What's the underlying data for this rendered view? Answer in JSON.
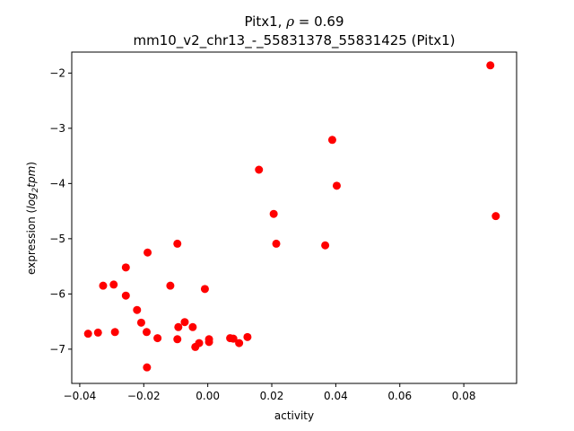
{
  "chart_data": {
    "type": "scatter",
    "title_prefix": "Pitx1, ",
    "title_rho": "ρ",
    "title_suffix": " = 0.69",
    "subtitle": "mm10_v2_chr13_-_55831378_55831425 (Pitx1)",
    "xlabel": "activity",
    "ylabel_prefix": "expression (",
    "ylabel_log": "log",
    "ylabel_sub": "2",
    "ylabel_tpm": "tpm",
    "ylabel_suffix": ")",
    "xlim": [
      -0.0425,
      0.0965
    ],
    "ylim": [
      -7.62,
      -1.62
    ],
    "xticks": [
      -0.04,
      -0.02,
      0.0,
      0.02,
      0.04,
      0.06,
      0.08
    ],
    "xtick_labels": [
      "−0.04",
      "−0.02",
      "0.00",
      "0.02",
      "0.04",
      "0.06",
      "0.08"
    ],
    "yticks": [
      -7,
      -6,
      -5,
      -4,
      -3,
      -2
    ],
    "ytick_labels": [
      "−7",
      "−6",
      "−5",
      "−4",
      "−3",
      "−2"
    ],
    "grid": false,
    "marker_color": "#ff0000",
    "points": [
      {
        "x": -0.0374,
        "y": -6.72
      },
      {
        "x": -0.0343,
        "y": -6.7
      },
      {
        "x": -0.0327,
        "y": -5.85
      },
      {
        "x": -0.0294,
        "y": -5.83
      },
      {
        "x": -0.029,
        "y": -6.69
      },
      {
        "x": -0.0256,
        "y": -5.52
      },
      {
        "x": -0.0256,
        "y": -6.03
      },
      {
        "x": -0.0221,
        "y": -6.29
      },
      {
        "x": -0.0208,
        "y": -6.52
      },
      {
        "x": -0.0191,
        "y": -6.69
      },
      {
        "x": -0.0188,
        "y": -5.25
      },
      {
        "x": -0.019,
        "y": -7.33
      },
      {
        "x": -0.0157,
        "y": -6.8
      },
      {
        "x": -0.0117,
        "y": -5.85
      },
      {
        "x": -0.0095,
        "y": -5.09
      },
      {
        "x": -0.0092,
        "y": -6.6
      },
      {
        "x": -0.0095,
        "y": -6.82
      },
      {
        "x": -0.0072,
        "y": -6.51
      },
      {
        "x": -0.0047,
        "y": -6.6
      },
      {
        "x": -0.0039,
        "y": -6.96
      },
      {
        "x": -0.0027,
        "y": -6.89
      },
      {
        "x": -0.0009,
        "y": -5.91
      },
      {
        "x": 0.0004,
        "y": -6.87
      },
      {
        "x": 0.0004,
        "y": -6.82
      },
      {
        "x": 0.007,
        "y": -6.8
      },
      {
        "x": 0.008,
        "y": -6.81
      },
      {
        "x": 0.0098,
        "y": -6.89
      },
      {
        "x": 0.0124,
        "y": -6.78
      },
      {
        "x": 0.016,
        "y": -3.75
      },
      {
        "x": 0.0206,
        "y": -4.55
      },
      {
        "x": 0.0214,
        "y": -5.09
      },
      {
        "x": 0.0367,
        "y": -5.12
      },
      {
        "x": 0.0389,
        "y": -3.21
      },
      {
        "x": 0.0403,
        "y": -4.04
      },
      {
        "x": 0.0883,
        "y": -1.86
      },
      {
        "x": 0.09,
        "y": -4.59
      }
    ]
  }
}
